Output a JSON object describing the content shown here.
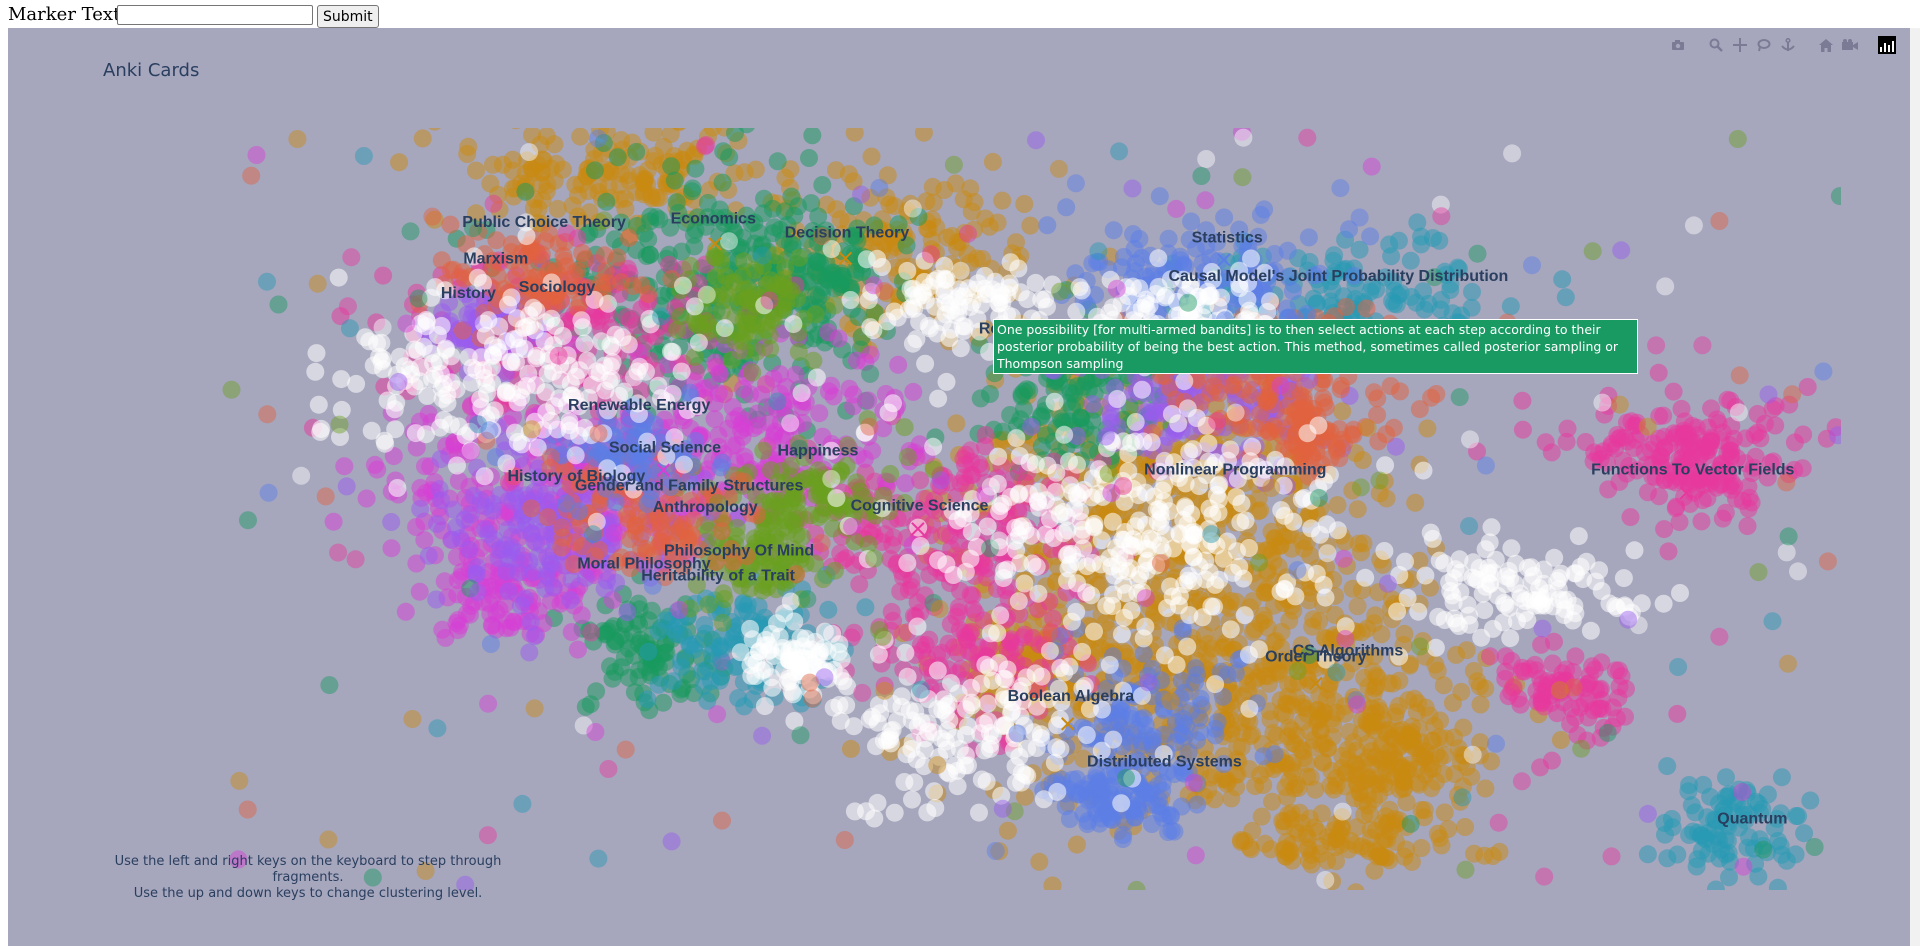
{
  "form": {
    "label": "Marker Text:",
    "input_value": "",
    "input_placeholder": "",
    "submit_label": "Submit"
  },
  "plot_title": "Anki Cards",
  "instructions": [
    "Use the left and right keys on the keyboard to step through fragments.",
    "Use the up and down keys to change clustering level."
  ],
  "hover_text": "One possibility [for multi-armed bandits] is to then select actions at each step according to their posterior probability of being the best action. This method, sometimes called posterior sampling or Thompson sampling",
  "hover_color": "#1a9a63",
  "background_color": "#a6a6bd",
  "modebar_icons": [
    "camera-icon",
    "zoom-icon",
    "pan-icon",
    "lasso-icon",
    "anchor-icon",
    "home-icon",
    "video-icon",
    "plotly-logo-icon"
  ],
  "chart_data": {
    "type": "scatter",
    "title": "Anki Cards",
    "xlabel": "",
    "ylabel": "",
    "grid": false,
    "legend": "none",
    "xlim": [
      0,
      100
    ],
    "ylim": [
      0,
      100
    ],
    "series": [
      {
        "color": "#c98a0f",
        "centers": [
          [
            24,
            94,
            6,
            4
          ],
          [
            42,
            84,
            4,
            5
          ],
          [
            58,
            51,
            6,
            10
          ],
          [
            59,
            32,
            7,
            12
          ],
          [
            68,
            22,
            5,
            8
          ],
          [
            50,
            30,
            2,
            3
          ],
          [
            70,
            7,
            3,
            2
          ],
          [
            73,
            17,
            2,
            3
          ]
        ]
      },
      {
        "color": "#17995e",
        "centers": [
          [
            30,
            79,
            5,
            8
          ],
          [
            35,
            81,
            3,
            4
          ],
          [
            52,
            65,
            3,
            5
          ],
          [
            26,
            31,
            2,
            4
          ]
        ]
      },
      {
        "color": "#e8389d",
        "centers": [
          [
            20,
            72,
            5,
            6
          ],
          [
            44,
            48,
            5,
            5
          ],
          [
            46,
            32,
            3,
            6
          ],
          [
            90,
            59,
            4,
            3
          ],
          [
            83,
            26,
            2,
            3
          ],
          [
            91,
            55,
            2,
            3
          ]
        ]
      },
      {
        "color": "#d83ed6",
        "centers": [
          [
            20,
            53,
            6,
            6
          ],
          [
            32,
            60,
            5,
            6
          ],
          [
            18,
            39,
            3,
            3
          ]
        ]
      },
      {
        "color": "#9a5cf0",
        "centers": [
          [
            20,
            47,
            4,
            5
          ],
          [
            16,
            74,
            2,
            2
          ],
          [
            60,
            64,
            4,
            5
          ]
        ]
      },
      {
        "color": "#2599b4",
        "centers": [
          [
            70,
            77,
            5,
            4
          ],
          [
            32,
            32,
            3,
            4
          ],
          [
            93,
            8,
            2,
            3
          ]
        ]
      },
      {
        "color": "#6a9f1e",
        "centers": [
          [
            36,
            52,
            3,
            3
          ],
          [
            33,
            44,
            2,
            3
          ],
          [
            32,
            77,
            2,
            4
          ]
        ]
      },
      {
        "color": "#e1623d",
        "centers": [
          [
            19,
            80,
            3,
            3
          ],
          [
            26,
            49,
            3,
            4
          ],
          [
            65,
            68,
            4,
            4
          ],
          [
            67,
            60,
            2,
            2
          ]
        ]
      },
      {
        "color": "#5b7ee6",
        "centers": [
          [
            60,
            80,
            4,
            4
          ],
          [
            57,
            21,
            3,
            6
          ],
          [
            25,
            58,
            2,
            3
          ],
          [
            55,
            12,
            2,
            2
          ]
        ]
      },
      {
        "color": "#ffffff",
        "centers": [
          [
            18,
            67,
            6,
            6
          ],
          [
            45,
            77,
            3,
            3
          ],
          [
            55,
            48,
            7,
            8
          ],
          [
            46,
            22,
            4,
            5
          ],
          [
            80,
            39,
            4,
            3
          ],
          [
            59,
            75,
            3,
            3
          ],
          [
            35,
            30,
            2,
            3
          ]
        ]
      }
    ],
    "cluster_labels": [
      {
        "text": "Public Choice Theory",
        "x": 19.5,
        "y": 87.0
      },
      {
        "text": "Marxism",
        "x": 16.5,
        "y": 82.2
      },
      {
        "text": "Sociology",
        "x": 20.3,
        "y": 78.5
      },
      {
        "text": "History",
        "x": 14.8,
        "y": 77.7
      },
      {
        "text": "Economics",
        "x": 30.0,
        "y": 87.5
      },
      {
        "text": "Decision Theory",
        "x": 38.3,
        "y": 85.6
      },
      {
        "text": "Statistics",
        "x": 61.9,
        "y": 85.0
      },
      {
        "text": "Causal Model's Joint Probability Distribution",
        "x": 68.8,
        "y": 79.9
      },
      {
        "text": "Reinforcement Learning",
        "x": 52.2,
        "y": 73.0
      },
      {
        "text": "Renewable Energy",
        "x": 25.4,
        "y": 63.0
      },
      {
        "text": "Social Science",
        "x": 27.0,
        "y": 57.4
      },
      {
        "text": "Happiness",
        "x": 36.5,
        "y": 57.0
      },
      {
        "text": "History of Biology",
        "x": 21.5,
        "y": 53.7
      },
      {
        "text": "Gender and Family Structures",
        "x": 28.5,
        "y": 52.4
      },
      {
        "text": "Anthropology",
        "x": 29.5,
        "y": 49.6
      },
      {
        "text": "Cognitive Science",
        "x": 42.8,
        "y": 49.8
      },
      {
        "text": "Nonlinear Programming",
        "x": 62.4,
        "y": 54.5
      },
      {
        "text": "Functions To Vector Fields",
        "x": 90.8,
        "y": 54.5
      },
      {
        "text": "Philosophy Of Mind",
        "x": 31.6,
        "y": 43.9
      },
      {
        "text": "Moral Philosophy",
        "x": 25.7,
        "y": 42.2
      },
      {
        "text": "Heritability of a Trait",
        "x": 30.3,
        "y": 40.6
      },
      {
        "text": "CS Algorithms",
        "x": 69.4,
        "y": 30.8
      },
      {
        "text": "Order Theory",
        "x": 67.4,
        "y": 30.0
      },
      {
        "text": "Boolean Algebra",
        "x": 52.2,
        "y": 24.8
      },
      {
        "text": "Distributed Systems",
        "x": 58.0,
        "y": 16.2
      },
      {
        "text": "Quantum",
        "x": 94.5,
        "y": 8.7
      }
    ],
    "center_markers": [
      {
        "x": 30.1,
        "y": 84.8,
        "color": "#c98a0f"
      },
      {
        "x": 38.2,
        "y": 82.9,
        "color": "#c98a0f"
      },
      {
        "x": 61.7,
        "y": 82.7,
        "color": "#5b7ee6"
      },
      {
        "x": 26.9,
        "y": 55.1,
        "color": "#d83ed6"
      },
      {
        "x": 42.7,
        "y": 47.4,
        "color": "#e8389d"
      },
      {
        "x": 90.4,
        "y": 52.1,
        "color": "#e8389d"
      },
      {
        "x": 67.4,
        "y": 27.1,
        "color": "#c98a0f"
      },
      {
        "x": 52.0,
        "y": 21.8,
        "color": "#c98a0f"
      }
    ]
  }
}
